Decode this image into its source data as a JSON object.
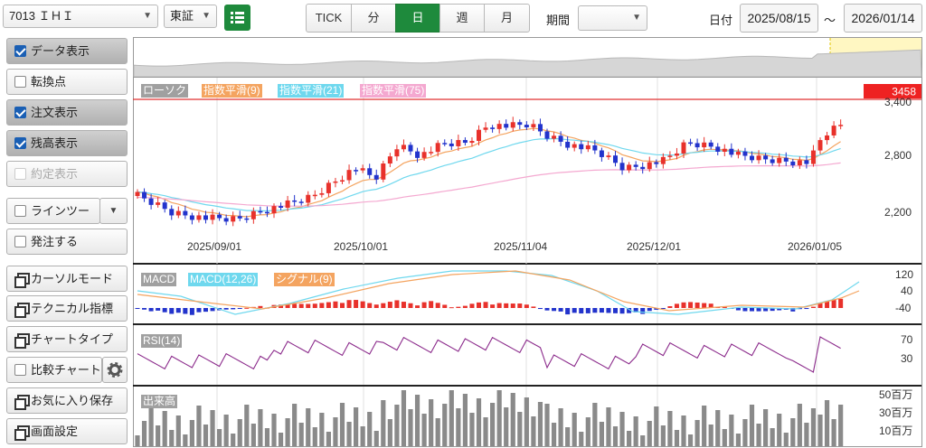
{
  "toolbar": {
    "symbol": "7013 ＩＨＩ",
    "market": "東証",
    "periods": [
      "TICK",
      "分",
      "日",
      "週",
      "月"
    ],
    "active_period": "日",
    "period_label": "期間",
    "period_value": "",
    "date_label": "日付",
    "date_from": "2025/08/15",
    "tilde": "～",
    "date_to": "2026/01/14"
  },
  "sidebar": {
    "data_display": "データ表示",
    "turning_point": "転換点",
    "order_display": "注文表示",
    "balance_display": "残高表示",
    "execution_display": "約定表示",
    "line_tool": "ラインツール",
    "place_order": "発注する",
    "cursor_mode": "カーソルモード",
    "technical": "テクニカル指標",
    "chart_type": "チャートタイプ",
    "compare_chart": "比較チャート",
    "favorites_save": "お気に入り保存",
    "screen_settings": "画面設定"
  },
  "price_panel": {
    "legend": [
      {
        "label": "ローソク",
        "color": "#a0a0a0"
      },
      {
        "label": "指数平滑(9)",
        "color": "#f4a460"
      },
      {
        "label": "指数平滑(21)",
        "color": "#6fd8ee"
      },
      {
        "label": "指数平滑(75)",
        "color": "#f4a8d0"
      }
    ],
    "current_price": "3458",
    "axis_labels": [
      "3,400",
      "2,800",
      "2,200"
    ],
    "date_labels": [
      "2025/09/01",
      "2025/10/01",
      "2025/11/04",
      "2025/12/01",
      "2026/01/05"
    ]
  },
  "macd_panel": {
    "legend": [
      {
        "label": "MACD",
        "color": "#a0a0a0"
      },
      {
        "label": "MACD(12,26)",
        "color": "#6fd8ee"
      },
      {
        "label": "シグナル(9)",
        "color": "#f4a460"
      }
    ],
    "axis_labels": [
      "120",
      "40",
      "-40"
    ]
  },
  "rsi_panel": {
    "legend": [
      {
        "label": "RSI(14)",
        "color": "#a0a0a0"
      }
    ],
    "axis_labels": [
      "70",
      "30"
    ]
  },
  "volume_panel": {
    "legend": [
      {
        "label": "出来高",
        "color": "#a0a0a0"
      }
    ],
    "axis_labels": [
      "50百万",
      "30百万",
      "10百万"
    ]
  },
  "colors": {
    "up": "#e8312b",
    "down": "#2233cc",
    "accent": "#1e8a3c",
    "price_line": "#e03030"
  }
}
